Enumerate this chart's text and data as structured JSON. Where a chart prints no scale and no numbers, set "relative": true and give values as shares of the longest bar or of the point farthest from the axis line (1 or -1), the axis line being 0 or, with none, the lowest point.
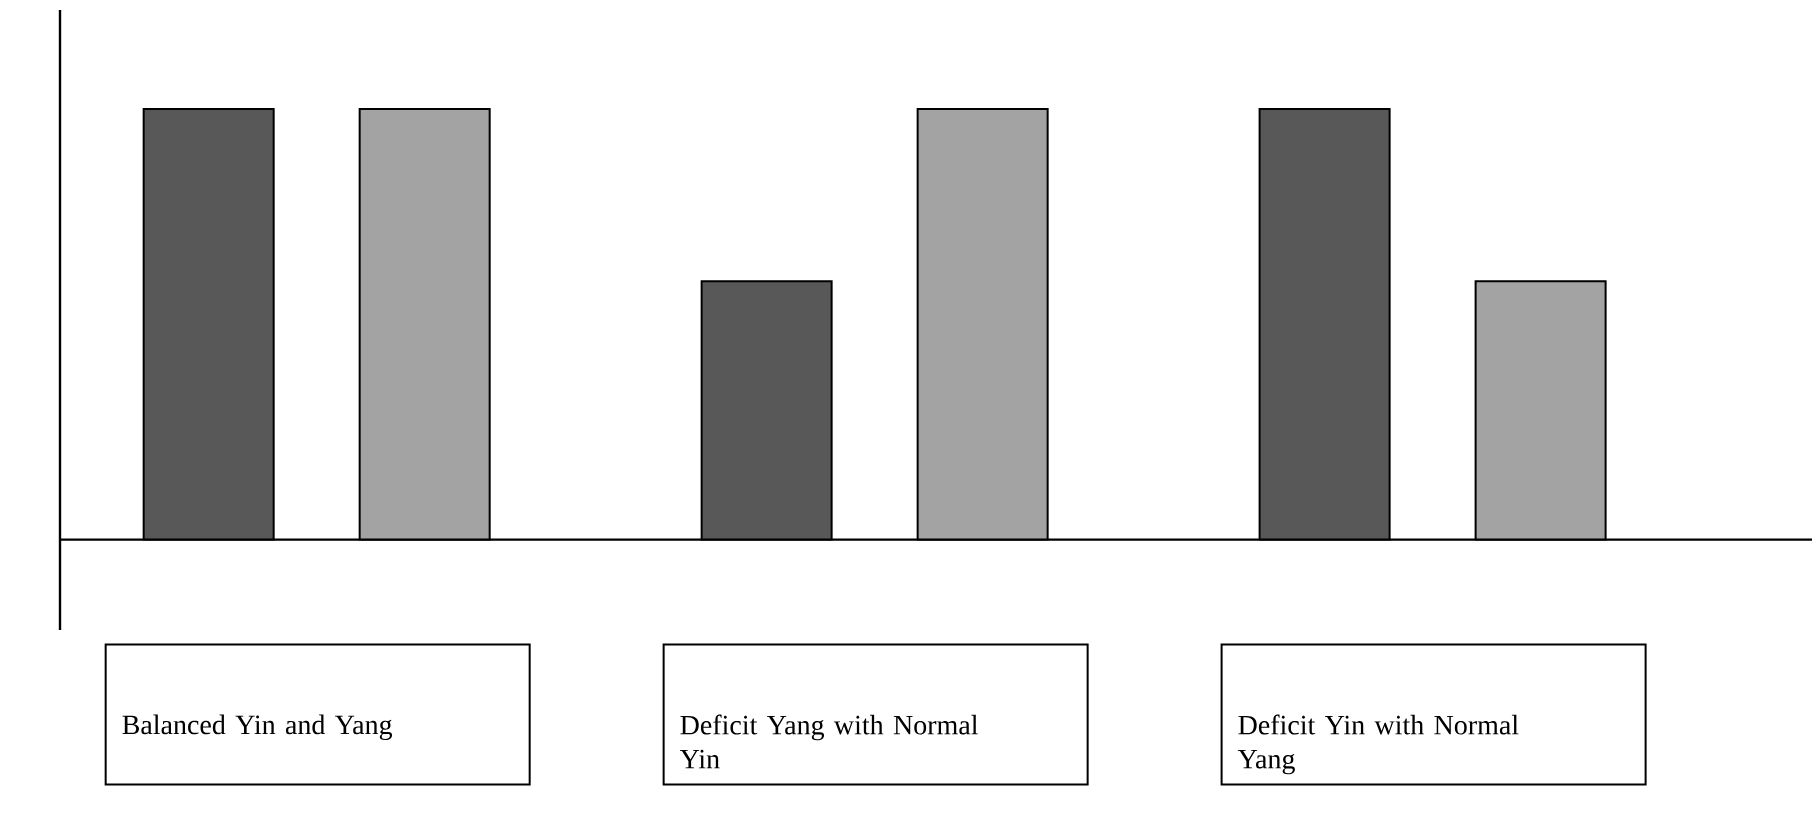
{
  "chart_data": {
    "type": "bar",
    "relative": true,
    "categories": [
      "Balanced Yin and Yang",
      "Deficit Yang with Normal Yin",
      "Deficit Yin with Normal Yang"
    ],
    "series": [
      {
        "color": "#585858",
        "values": [
          1,
          0.6,
          1
        ]
      },
      {
        "color": "#a3a3a3",
        "values": [
          1,
          1,
          0.6
        ]
      }
    ]
  }
}
